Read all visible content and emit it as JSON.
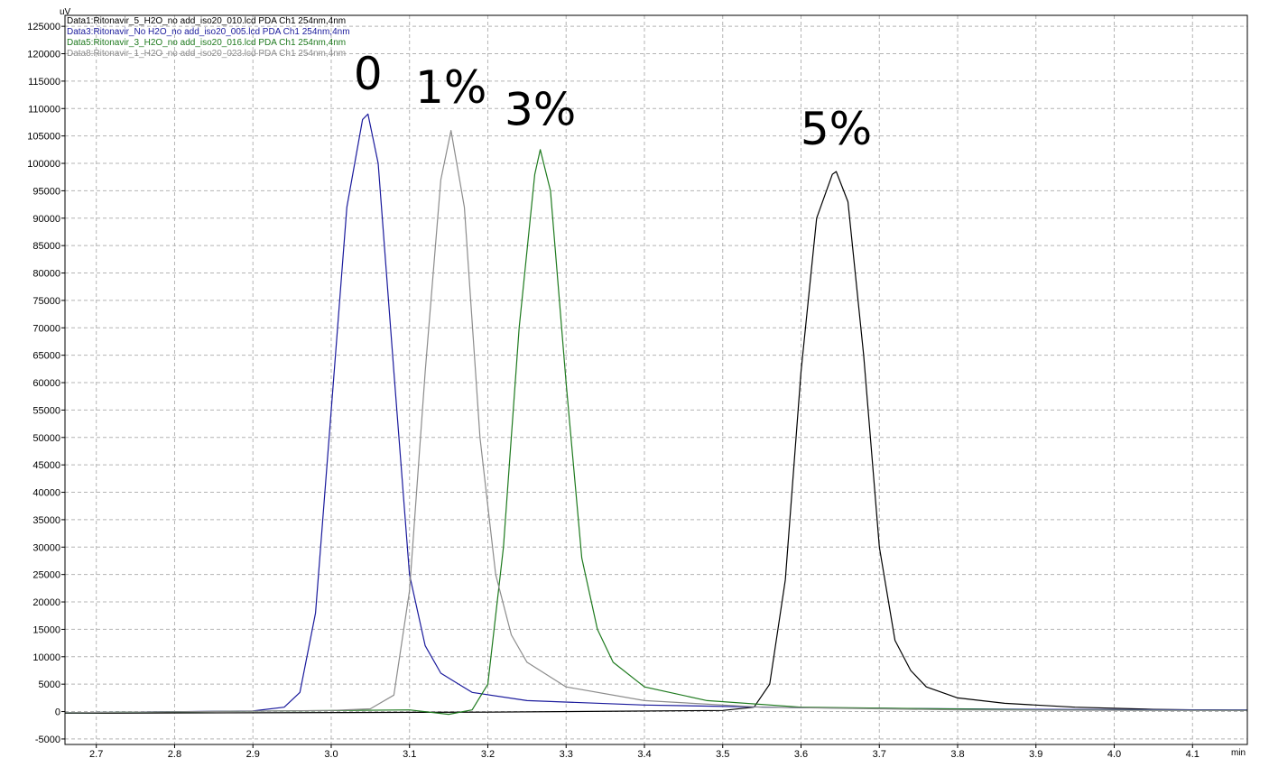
{
  "chart_data": {
    "type": "line",
    "title": "",
    "ylabel": "uV",
    "xlabel": "min",
    "xlim": [
      2.66,
      4.17
    ],
    "ylim": [
      -6000,
      127000
    ],
    "x_ticks": [
      2.7,
      2.8,
      2.9,
      3.0,
      3.1,
      3.2,
      3.3,
      3.4,
      3.5,
      3.6,
      3.7,
      3.8,
      3.9,
      4.0,
      4.1
    ],
    "x_tick_labels": [
      "2.7",
      "2.8",
      "2.9",
      "3.0",
      "3.1",
      "3.2",
      "3.3",
      "3.4",
      "3.5",
      "3.6",
      "3.7",
      "3.8",
      "3.9",
      "4.0",
      "4.1"
    ],
    "y_ticks": [
      -5000,
      0,
      5000,
      10000,
      15000,
      20000,
      25000,
      30000,
      35000,
      40000,
      45000,
      50000,
      55000,
      60000,
      65000,
      70000,
      75000,
      80000,
      85000,
      90000,
      95000,
      100000,
      105000,
      110000,
      115000,
      120000,
      125000
    ],
    "y_tick_labels": [
      "-5000",
      "0",
      "5000",
      "10000",
      "15000",
      "20000",
      "25000",
      "30000",
      "35000",
      "40000",
      "45000",
      "50000",
      "55000",
      "60000",
      "65000",
      "70000",
      "75000",
      "80000",
      "85000",
      "90000",
      "95000",
      "100000",
      "105000",
      "110000",
      "115000",
      "120000",
      "125000"
    ],
    "grid": true,
    "legend_position": "top-left",
    "series": [
      {
        "name": "Data1:Ritonavir_5_H2O_no add_iso20_010.lcd PDA Ch1 254nm,4nm",
        "color": "#000000",
        "x": [
          2.66,
          3.2,
          3.5,
          3.54,
          3.56,
          3.58,
          3.6,
          3.62,
          3.64,
          3.645,
          3.66,
          3.68,
          3.7,
          3.72,
          3.74,
          3.76,
          3.8,
          3.86,
          3.95,
          4.05,
          4.17
        ],
        "y": [
          -300,
          -100,
          200,
          800,
          5000,
          24000,
          62000,
          90000,
          98000,
          98500,
          93000,
          65000,
          30000,
          13000,
          7500,
          4500,
          2500,
          1500,
          800,
          400,
          200
        ]
      },
      {
        "name": "Data3:Ritonavir_No H2O_no add_iso20_005.lcd PDA Ch1 254nm,4nm",
        "color": "#1a1a9c",
        "x": [
          2.66,
          2.9,
          2.94,
          2.96,
          2.98,
          3.0,
          3.02,
          3.04,
          3.047,
          3.06,
          3.08,
          3.1,
          3.12,
          3.14,
          3.18,
          3.25,
          3.4,
          3.6,
          3.9,
          4.17
        ],
        "y": [
          -200,
          100,
          800,
          3500,
          18000,
          55000,
          92000,
          108000,
          109000,
          100000,
          62000,
          25000,
          12000,
          7000,
          3500,
          2000,
          1200,
          700,
          400,
          300
        ]
      },
      {
        "name": "Data5:Ritonavir_3_H2O_no add_iso20_016.lcd PDA Ch1 254nm,4nm",
        "color": "#1e7a1e",
        "x": [
          2.66,
          3.1,
          3.15,
          3.18,
          3.2,
          3.22,
          3.24,
          3.26,
          3.267,
          3.28,
          3.3,
          3.32,
          3.34,
          3.36,
          3.4,
          3.48,
          3.6,
          3.9,
          4.17
        ],
        "y": [
          -200,
          300,
          -500,
          300,
          5000,
          30000,
          70000,
          98000,
          102500,
          95000,
          60000,
          28000,
          15000,
          9000,
          4500,
          2000,
          800,
          300,
          200
        ]
      },
      {
        "name": "Data8:Ritonavir_1_H2O_no add_iso20_023.lcd PDA Ch1 254nm,4nm",
        "color": "#8c8c8c",
        "x": [
          2.66,
          3.0,
          3.05,
          3.08,
          3.1,
          3.12,
          3.14,
          3.153,
          3.17,
          3.19,
          3.21,
          3.23,
          3.25,
          3.3,
          3.4,
          3.55,
          3.8,
          4.17
        ],
        "y": [
          -200,
          200,
          500,
          3000,
          22000,
          62000,
          97000,
          106000,
          92000,
          50000,
          25000,
          14000,
          9000,
          4500,
          2000,
          800,
          300,
          200
        ]
      }
    ],
    "annotations": [
      {
        "text": "0",
        "x": 3.047,
        "y": 113500
      },
      {
        "text": "1%",
        "x": 3.153,
        "y": 111000
      },
      {
        "text": "3%",
        "x": 3.267,
        "y": 107000
      },
      {
        "text": "5%",
        "x": 3.645,
        "y": 103500
      }
    ]
  }
}
